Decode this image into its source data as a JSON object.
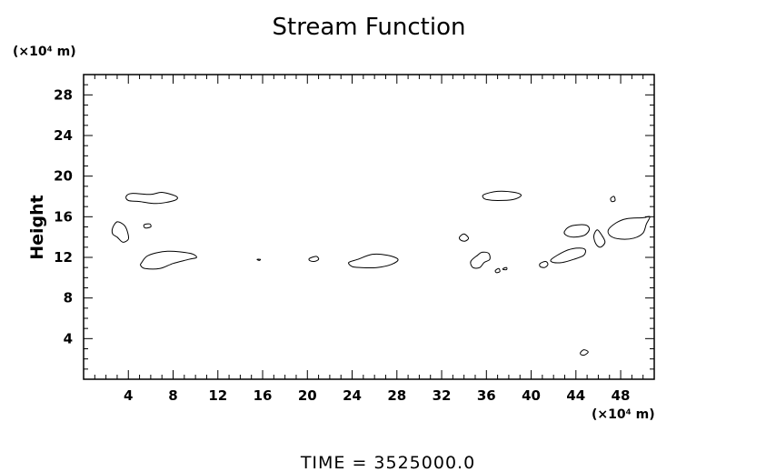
{
  "chart_data": {
    "type": "contour",
    "title": "Stream Function",
    "xlabel": "",
    "ylabel": "Height",
    "x_unit_label": "(×10⁴ m)",
    "y_unit_label": "(×10⁴ m)",
    "xlim": [
      0,
      51
    ],
    "ylim": [
      0,
      30
    ],
    "x_ticks": [
      4,
      8,
      12,
      16,
      20,
      24,
      28,
      32,
      36,
      40,
      44,
      48
    ],
    "y_ticks": [
      4,
      8,
      12,
      16,
      20,
      24,
      28
    ],
    "grid": false,
    "footer": "TIME  =  3525000.0",
    "contours": [
      {
        "id": "c1",
        "points": [
          [
            3.8,
            18.0
          ],
          [
            4.3,
            18.3
          ],
          [
            6.0,
            18.2
          ],
          [
            7.0,
            18.4
          ],
          [
            8.3,
            18.0
          ],
          [
            8.1,
            17.6
          ],
          [
            6.5,
            17.3
          ],
          [
            5.0,
            17.5
          ],
          [
            4.0,
            17.6
          ]
        ]
      },
      {
        "id": "c2",
        "points": [
          [
            2.6,
            14.9
          ],
          [
            3.0,
            15.5
          ],
          [
            3.6,
            15.2
          ],
          [
            3.9,
            14.6
          ],
          [
            4.0,
            13.8
          ],
          [
            3.5,
            13.5
          ],
          [
            3.0,
            14.0
          ],
          [
            2.6,
            14.3
          ]
        ]
      },
      {
        "id": "c3",
        "points": [
          [
            5.4,
            15.2
          ],
          [
            5.9,
            15.3
          ],
          [
            6.0,
            15.0
          ],
          [
            5.5,
            14.9
          ]
        ]
      },
      {
        "id": "c4",
        "points": [
          [
            5.2,
            11.5
          ],
          [
            5.8,
            12.2
          ],
          [
            7.5,
            12.6
          ],
          [
            9.5,
            12.4
          ],
          [
            10.1,
            12.0
          ],
          [
            9.4,
            11.8
          ],
          [
            8.0,
            11.4
          ],
          [
            6.8,
            10.9
          ],
          [
            5.5,
            10.9
          ],
          [
            5.1,
            11.2
          ]
        ]
      },
      {
        "id": "c5",
        "points": [
          [
            15.5,
            11.8
          ],
          [
            15.8,
            11.8
          ],
          [
            15.7,
            11.7
          ]
        ]
      },
      {
        "id": "c6",
        "points": [
          [
            20.2,
            11.9
          ],
          [
            20.8,
            12.1
          ],
          [
            21.0,
            11.8
          ],
          [
            20.6,
            11.6
          ],
          [
            20.2,
            11.7
          ]
        ]
      },
      {
        "id": "c7",
        "points": [
          [
            23.7,
            11.5
          ],
          [
            24.5,
            11.8
          ],
          [
            25.8,
            12.3
          ],
          [
            27.2,
            12.2
          ],
          [
            28.1,
            11.8
          ],
          [
            27.5,
            11.3
          ],
          [
            26.2,
            11.0
          ],
          [
            24.8,
            11.0
          ],
          [
            24.0,
            11.1
          ]
        ]
      },
      {
        "id": "c8",
        "points": [
          [
            35.8,
            18.2
          ],
          [
            37.0,
            18.5
          ],
          [
            38.5,
            18.4
          ],
          [
            39.1,
            18.1
          ],
          [
            38.4,
            17.7
          ],
          [
            37.0,
            17.6
          ],
          [
            36.0,
            17.7
          ],
          [
            35.7,
            17.9
          ]
        ]
      },
      {
        "id": "c9",
        "points": [
          [
            33.6,
            14.0
          ],
          [
            34.0,
            14.3
          ],
          [
            34.4,
            13.9
          ],
          [
            34.1,
            13.6
          ],
          [
            33.7,
            13.7
          ]
        ]
      },
      {
        "id": "c10",
        "points": [
          [
            34.6,
            11.6
          ],
          [
            35.2,
            12.2
          ],
          [
            35.6,
            12.5
          ],
          [
            36.2,
            12.4
          ],
          [
            36.3,
            11.8
          ],
          [
            35.8,
            11.5
          ],
          [
            35.4,
            11.0
          ],
          [
            34.8,
            11.0
          ]
        ]
      },
      {
        "id": "c11",
        "points": [
          [
            36.8,
            10.7
          ],
          [
            37.1,
            10.9
          ],
          [
            37.2,
            10.6
          ],
          [
            36.9,
            10.5
          ]
        ]
      },
      {
        "id": "c12",
        "points": [
          [
            37.5,
            10.9
          ],
          [
            37.8,
            11.0
          ],
          [
            37.8,
            10.8
          ],
          [
            37.5,
            10.8
          ]
        ]
      },
      {
        "id": "c13",
        "points": [
          [
            40.8,
            11.4
          ],
          [
            41.3,
            11.6
          ],
          [
            41.5,
            11.3
          ],
          [
            41.2,
            11.0
          ],
          [
            40.8,
            11.1
          ]
        ]
      },
      {
        "id": "c14",
        "points": [
          [
            41.8,
            11.8
          ],
          [
            43.0,
            12.6
          ],
          [
            44.0,
            12.9
          ],
          [
            44.8,
            12.8
          ],
          [
            44.7,
            12.2
          ],
          [
            43.8,
            11.8
          ],
          [
            42.8,
            11.5
          ],
          [
            42.0,
            11.5
          ]
        ]
      },
      {
        "id": "c15",
        "points": [
          [
            43.0,
            14.6
          ],
          [
            43.6,
            15.1
          ],
          [
            44.8,
            15.2
          ],
          [
            45.2,
            14.8
          ],
          [
            44.8,
            14.2
          ],
          [
            43.8,
            14.0
          ],
          [
            43.1,
            14.2
          ]
        ]
      },
      {
        "id": "c16",
        "points": [
          [
            45.6,
            14.1
          ],
          [
            45.9,
            14.7
          ],
          [
            46.3,
            14.2
          ],
          [
            46.6,
            13.5
          ],
          [
            46.2,
            13.0
          ],
          [
            45.8,
            13.3
          ]
        ]
      },
      {
        "id": "c17",
        "points": [
          [
            46.9,
            14.7
          ],
          [
            47.6,
            15.4
          ],
          [
            48.5,
            15.8
          ],
          [
            50.0,
            15.9
          ],
          [
            50.6,
            16.0
          ],
          [
            50.3,
            15.3
          ],
          [
            50.0,
            14.4
          ],
          [
            49.2,
            13.9
          ],
          [
            48.0,
            13.8
          ],
          [
            47.1,
            14.1
          ]
        ]
      },
      {
        "id": "c18",
        "points": [
          [
            47.1,
            17.8
          ],
          [
            47.4,
            18.0
          ],
          [
            47.5,
            17.6
          ],
          [
            47.2,
            17.5
          ]
        ]
      },
      {
        "id": "c19",
        "points": [
          [
            44.4,
            2.6
          ],
          [
            44.7,
            2.9
          ],
          [
            45.1,
            2.7
          ],
          [
            44.8,
            2.4
          ],
          [
            44.5,
            2.4
          ]
        ]
      }
    ]
  }
}
